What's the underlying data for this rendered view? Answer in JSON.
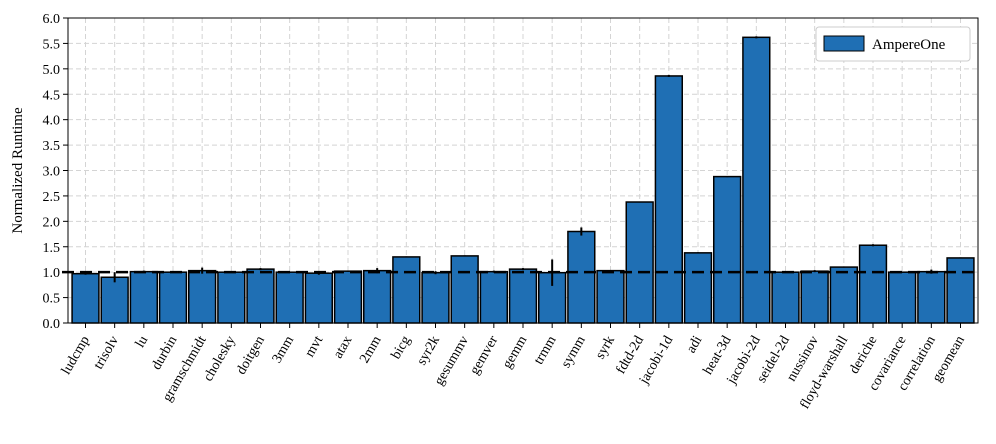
{
  "chart_data": {
    "type": "bar",
    "title": "",
    "xlabel": "",
    "ylabel": "Normalized Runtime",
    "ylim": [
      0.0,
      6.0
    ],
    "yticks": [
      "0.0",
      "0.5",
      "1.0",
      "1.5",
      "2.0",
      "2.5",
      "3.0",
      "3.5",
      "4.0",
      "4.5",
      "5.0",
      "5.5",
      "6.0"
    ],
    "grid": true,
    "reference_line": 1.0,
    "legend": {
      "position": "top-right"
    },
    "categories": [
      "ludcmp",
      "trisolv",
      "lu",
      "durbin",
      "gramschmidt",
      "cholesky",
      "doitgen",
      "3mm",
      "mvt",
      "atax",
      "2mm",
      "bicg",
      "syr2k",
      "gesummv",
      "gemver",
      "gemm",
      "trmm",
      "symm",
      "syrk",
      "fdtd-2d",
      "jacobi-1d",
      "adi",
      "heat-3d",
      "jacobi-2d",
      "seidel-2d",
      "nussinov",
      "floyd-warshall",
      "deriche",
      "covariance",
      "correlation",
      "geomean"
    ],
    "series": [
      {
        "name": "AmpereOne",
        "color": "#1f6fb4",
        "values": [
          0.97,
          0.9,
          1.01,
          1.0,
          1.03,
          1.0,
          1.06,
          1.0,
          0.98,
          1.02,
          1.03,
          1.3,
          0.99,
          1.32,
          1.01,
          1.06,
          0.99,
          1.8,
          1.03,
          2.38,
          4.86,
          1.38,
          2.88,
          5.62,
          1.0,
          1.02,
          1.1,
          1.53,
          1.0,
          1.01,
          1.28
        ],
        "errors": [
          0.02,
          0.1,
          0.02,
          0.01,
          0.06,
          0.01,
          0.02,
          0.01,
          0.03,
          0.01,
          0.05,
          0.01,
          0.03,
          0.01,
          0.02,
          0.02,
          0.26,
          0.08,
          0.01,
          0.01,
          0.02,
          0.01,
          0.01,
          0.02,
          0.01,
          0.02,
          0.01,
          0.02,
          0.01,
          0.04,
          0.01
        ]
      }
    ]
  }
}
